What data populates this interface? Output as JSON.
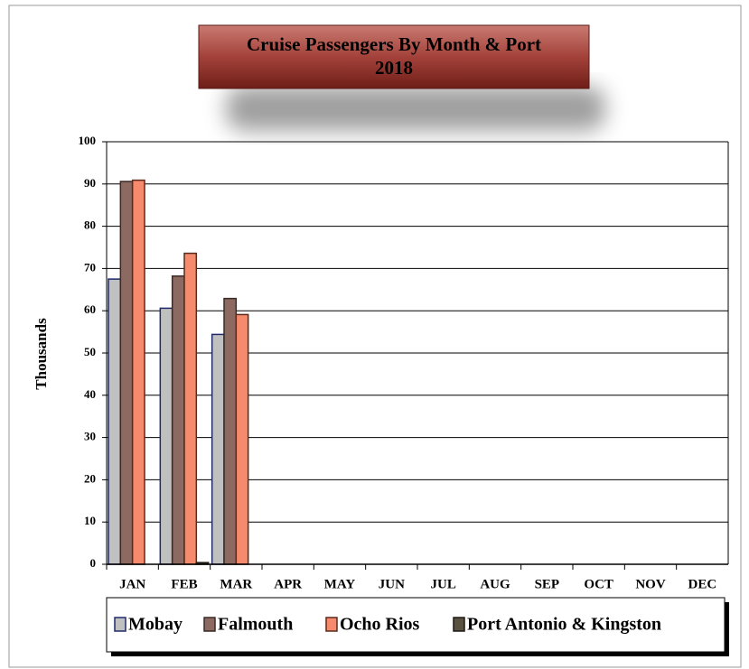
{
  "chart_data": {
    "type": "bar",
    "title": "Cruise Passengers By Month & Port",
    "subtitle": "2018",
    "ylabel": "Thousands",
    "categories": [
      "JAN",
      "FEB",
      "MAR",
      "APR",
      "MAY",
      "JUN",
      "JUL",
      "AUG",
      "SEP",
      "OCT",
      "NOV",
      "DEC"
    ],
    "series": [
      {
        "name": "Mobay",
        "color": "#c0c0c0",
        "edgecolor": "#1f2a6b",
        "values": [
          67.5,
          60.6,
          54.4,
          null,
          null,
          null,
          null,
          null,
          null,
          null,
          null,
          null
        ]
      },
      {
        "name": "Falmouth",
        "color": "#8c6a62",
        "edgecolor": "#3a2a26",
        "values": [
          90.6,
          68.2,
          62.9,
          null,
          null,
          null,
          null,
          null,
          null,
          null,
          null,
          null
        ]
      },
      {
        "name": "Ocho Rios",
        "color": "#f58a6c",
        "edgecolor": "#5a2a1c",
        "values": [
          90.9,
          73.6,
          59.1,
          null,
          null,
          null,
          null,
          null,
          null,
          null,
          null,
          null
        ]
      },
      {
        "name": "Port Antonio & Kingston",
        "color": "#5b5140",
        "edgecolor": "#1e1a14",
        "values": [
          0,
          0.4,
          0,
          null,
          null,
          null,
          null,
          null,
          null,
          null,
          null,
          null
        ]
      }
    ],
    "ylim": [
      0,
      100
    ],
    "yticks": [
      0,
      10,
      20,
      30,
      40,
      50,
      60,
      70,
      80,
      90,
      100
    ],
    "grid": true,
    "legend": "bottom"
  }
}
